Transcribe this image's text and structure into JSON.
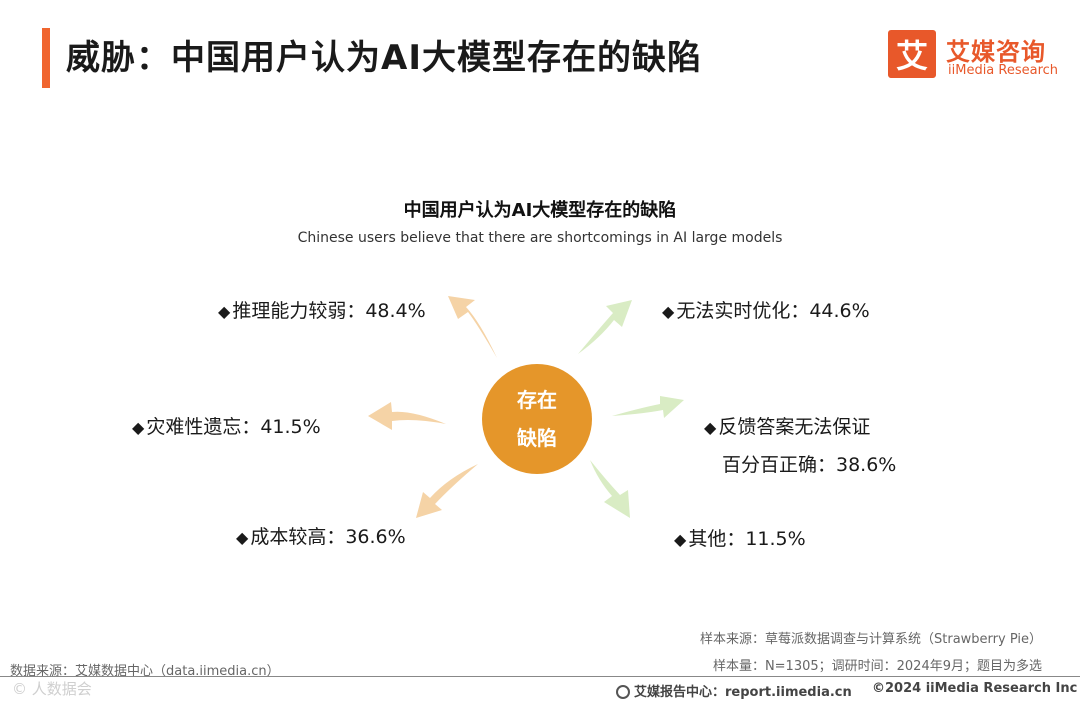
{
  "header": {
    "title": "威胁：中国用户认为AI大模型存在的缺陷",
    "brand_mark": "艾",
    "brand_cn": "艾媒咨询",
    "brand_en": "iiMedia Research"
  },
  "diagram": {
    "title": "中国用户认为AI大模型存在的缺陷",
    "subtitle": "Chinese users believe that there are shortcomings in AI large models",
    "center_line1": "存在",
    "center_line2": "缺陷",
    "bullet": "◆",
    "items": [
      {
        "label": "推理能力较弱：48.4%",
        "value": 48.4
      },
      {
        "label": "无法实时优化：44.6%",
        "value": 44.6
      },
      {
        "label": "灾难性遗忘：41.5%",
        "value": 41.5
      },
      {
        "label": "反馈答案无法保证",
        "label2": "百分百正确：38.6%",
        "value": 38.6
      },
      {
        "label": "成本较高：36.6%",
        "value": 36.6
      },
      {
        "label": "其他：11.5%",
        "value": 11.5
      }
    ],
    "colors": {
      "center": "#e5962a",
      "arrow_orange": "#f5d3a6",
      "arrow_green": "#d9ecc4"
    }
  },
  "footer": {
    "sample_source": "样本来源：草莓派数据调查与计算系统（Strawberry Pie）",
    "sample_info": "样本量：N=1305；调研时间：2024年9月；题目为多选",
    "data_source": "数据来源：艾媒数据中心（data.iimedia.cn）",
    "watermark": "©  人数据会",
    "report_center": "艾媒报告中心：report.iimedia.cn",
    "copyright": "©2024  iiMedia Research  Inc"
  }
}
